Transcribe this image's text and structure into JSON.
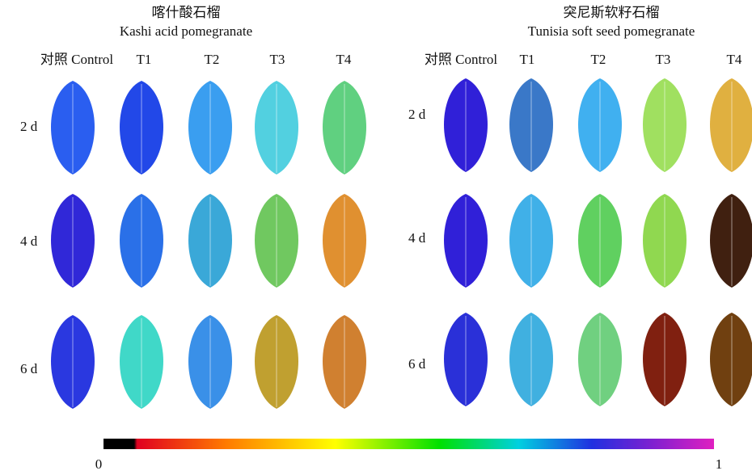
{
  "panels": [
    {
      "title_zh": "喀什酸石榴",
      "title_en": "Kashi acid pomegranate",
      "columns": [
        "对照 Control",
        "T1",
        "T2",
        "T3",
        "T4"
      ],
      "rows": [
        "2 d",
        "4 d",
        "6 d"
      ]
    },
    {
      "title_zh": "突尼斯软籽石榴",
      "title_en": "Tunisia soft seed pomegranate",
      "columns": [
        "对照 Control",
        "T1",
        "T2",
        "T3",
        "T4"
      ],
      "rows": [
        "2 d",
        "4 d",
        "6 d"
      ]
    }
  ],
  "colorbar": {
    "min_label": "0",
    "max_label": "1"
  }
}
